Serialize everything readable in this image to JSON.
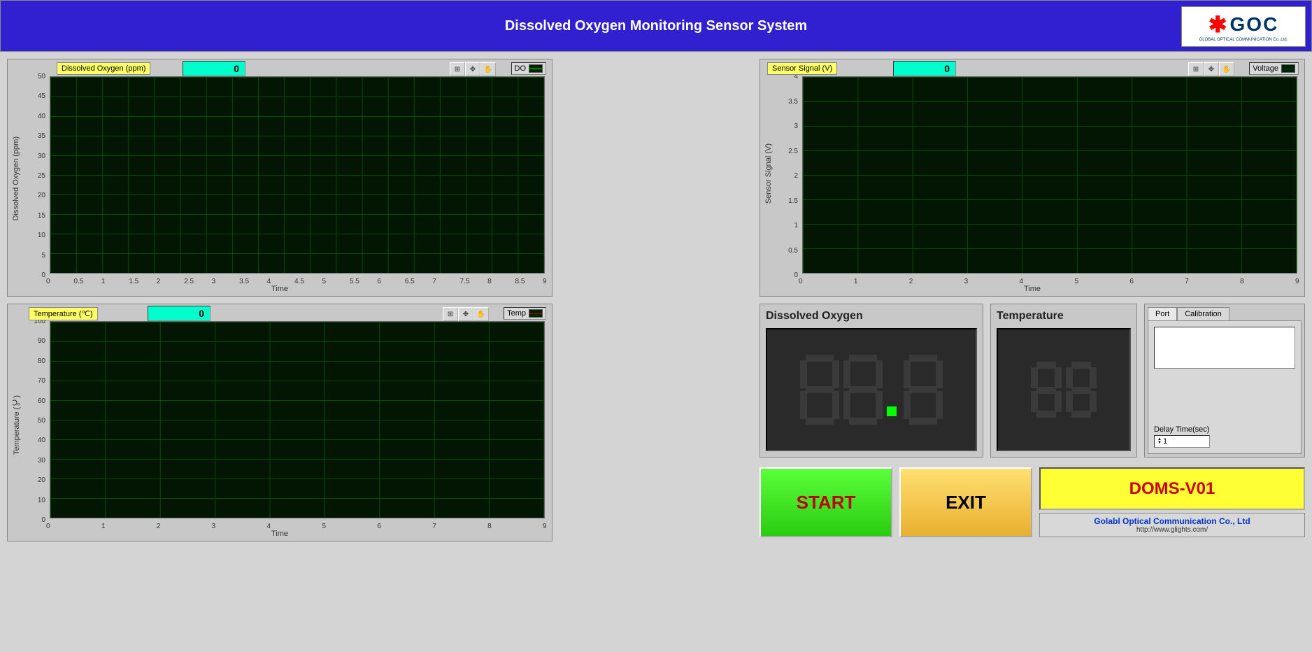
{
  "header": {
    "title": "Dissolved Oxygen Monitoring Sensor System",
    "logo_text": "GOC",
    "logo_subtitle": "GLOBAL OPTICAL COMMUNICATION Co.,Ltd."
  },
  "charts": {
    "do": {
      "label": "Dissolved Oxygen (ppm)",
      "value": "0",
      "y_axis": "Dissolved Oxygen (ppm)",
      "x_axis": "Time",
      "y_ticks": [
        "0",
        "5",
        "10",
        "15",
        "20",
        "25",
        "30",
        "35",
        "40",
        "45",
        "50"
      ],
      "x_ticks": [
        "0",
        "0.5",
        "1",
        "1.5",
        "2",
        "2.5",
        "3",
        "3.5",
        "4",
        "4.5",
        "5",
        "5.5",
        "6",
        "6.5",
        "7",
        "7.5",
        "8",
        "8.5",
        "9"
      ],
      "legend": "DO",
      "legend_color": "green",
      "ylim": [
        0,
        50
      ],
      "xlim": [
        0,
        9
      ]
    },
    "sensor": {
      "label": "Sensor Signal (V)",
      "value": "0",
      "y_axis": "Sensor Signal (V)",
      "x_axis": "Time",
      "y_ticks": [
        "0",
        "0.5",
        "1",
        "1.5",
        "2",
        "2.5",
        "3",
        "3.5",
        "4"
      ],
      "x_ticks": [
        "0",
        "1",
        "2",
        "3",
        "4",
        "5",
        "6",
        "7",
        "8",
        "9"
      ],
      "legend": "Voltage",
      "legend_color": "navy",
      "ylim": [
        0,
        4
      ],
      "xlim": [
        0,
        9
      ]
    },
    "temp": {
      "label": "Temperature (℃)",
      "value": "0",
      "y_axis": "Temperature (℃)",
      "x_axis": "Time",
      "y_ticks": [
        "0",
        "10",
        "20",
        "30",
        "40",
        "50",
        "60",
        "70",
        "80",
        "90",
        "100"
      ],
      "x_ticks": [
        "0",
        "1",
        "2",
        "3",
        "4",
        "5",
        "6",
        "7",
        "8",
        "9"
      ],
      "legend": "Temp",
      "legend_color": "red",
      "ylim": [
        0,
        100
      ],
      "xlim": [
        0,
        9
      ]
    }
  },
  "readouts": {
    "do_title": "Dissolved Oxygen",
    "temp_title": "Temperature"
  },
  "tabs": {
    "port": "Port",
    "calibration": "Calibration",
    "delay_label": "Delay Time(sec)",
    "delay_value": "1"
  },
  "buttons": {
    "start": "START",
    "exit": "EXIT"
  },
  "info": {
    "model": "DOMS-V01",
    "company": "Golabl Optical Communication Co., Ltd",
    "url": "http://www.glights.com/"
  },
  "colors": {
    "header_bg": "#3020d0",
    "label_bg": "#ffff66",
    "value_bg": "#00ffcc",
    "plot_bg": "#031503",
    "grid": "#0a4a0a",
    "panel": "#c8c8c8",
    "model_bg": "#ffff33",
    "model_fg": "#d00000",
    "start_fg": "#c00000"
  }
}
